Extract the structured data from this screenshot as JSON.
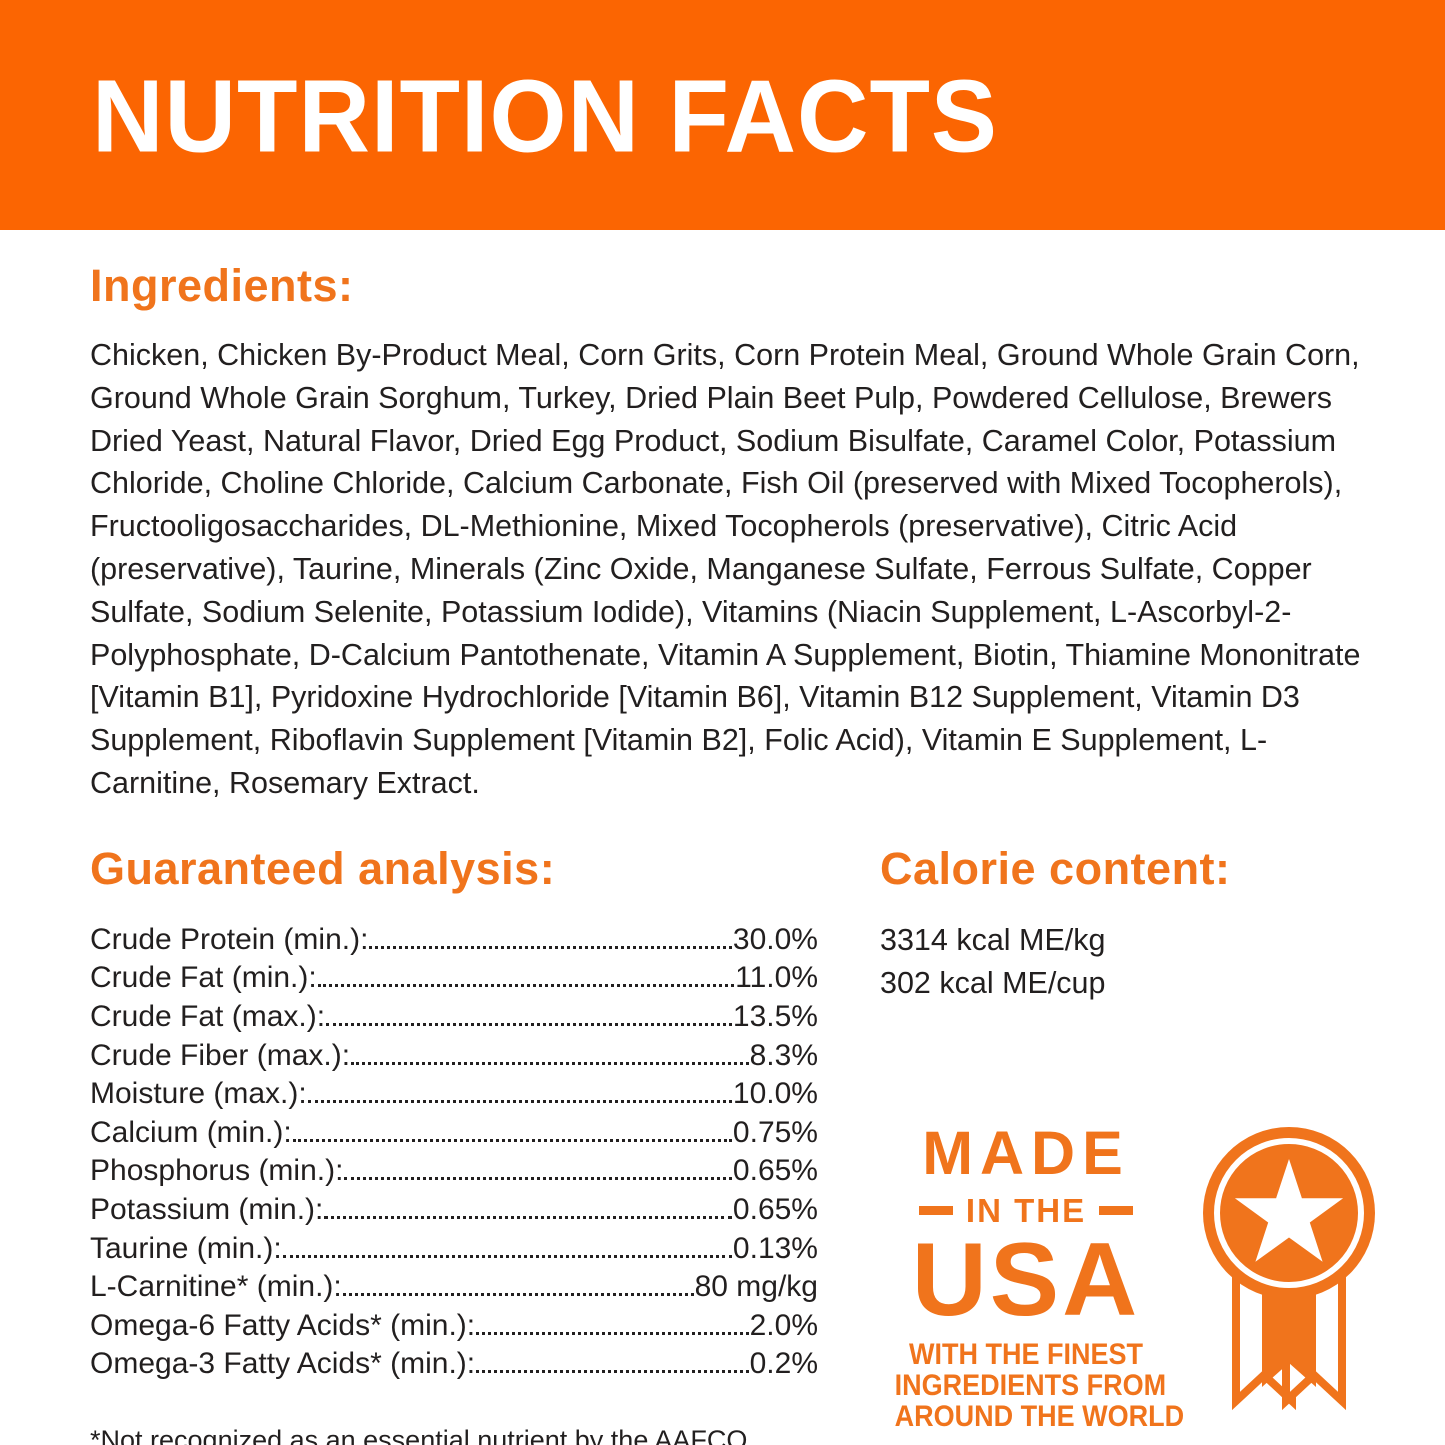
{
  "colors": {
    "banner_orange": "#fb6502",
    "accent_orange": "#f0741c",
    "text_dark": "#221f1f",
    "white": "#ffffff"
  },
  "header": {
    "title": "NUTRITION FACTS"
  },
  "ingredients": {
    "heading": "Ingredients:",
    "text": "Chicken, Chicken By-Product Meal, Corn Grits, Corn Protein Meal, Ground Whole Grain Corn, Ground Whole Grain Sorghum, Turkey, Dried Plain Beet Pulp, Powdered Cellulose, Brewers Dried Yeast, Natural Flavor, Dried Egg Product, Sodium Bisulfate, Caramel Color, Potassium Chloride, Choline Chloride, Calcium Carbonate, Fish Oil (preserved with Mixed Tocopherols), Fructooligosaccharides, DL-Methionine, Mixed Tocopherols (preservative), Citric Acid (preservative), Taurine, Minerals (Zinc Oxide, Manganese Sulfate, Ferrous Sulfate, Copper Sulfate, Sodium Selenite, Potassium Iodide), Vitamins (Niacin Supplement, L-Ascorbyl-2-Polyphosphate, D-Calcium Pantothenate, Vitamin A Supplement, Biotin, Thiamine Mononitrate [Vitamin B1], Pyridoxine Hydrochloride [Vitamin B6], Vitamin B12 Supplement, Vitamin D3 Supplement, Riboflavin Supplement [Vitamin B2], Folic Acid), Vitamin E Supplement, L-Carnitine, Rosemary Extract."
  },
  "guaranteed_analysis": {
    "heading": "Guaranteed analysis:",
    "rows": [
      {
        "label": "Crude Protein (min.):",
        "value": "30.0%"
      },
      {
        "label": "Crude Fat (min.):",
        "value": "11.0%"
      },
      {
        "label": "Crude Fat (max.):",
        "value": "13.5%"
      },
      {
        "label": "Crude Fiber (max.):",
        "value": "8.3%"
      },
      {
        "label": "Moisture (max.):",
        "value": "10.0%"
      },
      {
        "label": "Calcium (min.):",
        "value": "0.75%"
      },
      {
        "label": "Phosphorus (min.):",
        "value": "0.65%"
      },
      {
        "label": "Potassium (min.):",
        "value": "0.65%"
      },
      {
        "label": "Taurine (min.):",
        "value": "0.13%"
      },
      {
        "label": "L-Carnitine* (min.):",
        "value": "80 mg/kg"
      },
      {
        "label": "Omega-6 Fatty Acids* (min.):",
        "value": "2.0%"
      },
      {
        "label": "Omega-3 Fatty Acids* (min.):",
        "value": "0.2%"
      }
    ]
  },
  "calorie_content": {
    "heading": "Calorie content:",
    "lines": [
      "3314 kcal ME/kg",
      "302 kcal ME/cup"
    ]
  },
  "made_in_usa": {
    "line1": "MADE",
    "line2": "IN THE",
    "line3": "USA",
    "subline1": "WITH THE FINEST",
    "subline2": "INGREDIENTS FROM",
    "subline3": "AROUND THE WORLD",
    "icon": "award-ribbon-star-icon"
  },
  "footnote": "*Not recognized as an essential nutrient by the AAFCO Cat Food Nutrient Profiles."
}
